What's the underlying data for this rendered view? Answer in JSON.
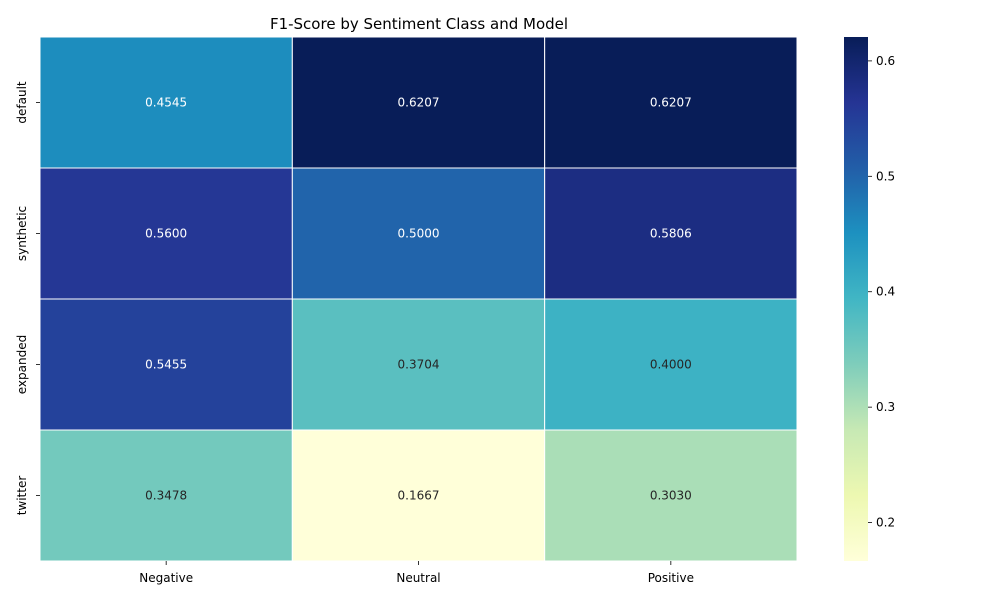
{
  "chart_data": {
    "type": "heatmap",
    "title": "F1-Score by Sentiment Class and Model",
    "xlabel": "",
    "ylabel": "",
    "columns": [
      "Negative",
      "Neutral",
      "Positive"
    ],
    "rows": [
      "default",
      "synthetic",
      "expanded",
      "twitter"
    ],
    "values": [
      [
        0.4545,
        0.6207,
        0.6207
      ],
      [
        0.56,
        0.5,
        0.5806
      ],
      [
        0.5455,
        0.3704,
        0.4
      ],
      [
        0.3478,
        0.1667,
        0.303
      ]
    ],
    "colorscale": "YlGnBu",
    "vmin": 0.1667,
    "vmax": 0.6207,
    "colorbar_ticks": [
      "0.2",
      "0.3",
      "0.4",
      "0.5",
      "0.6"
    ],
    "grid": false,
    "legend": "colorbar-right"
  }
}
